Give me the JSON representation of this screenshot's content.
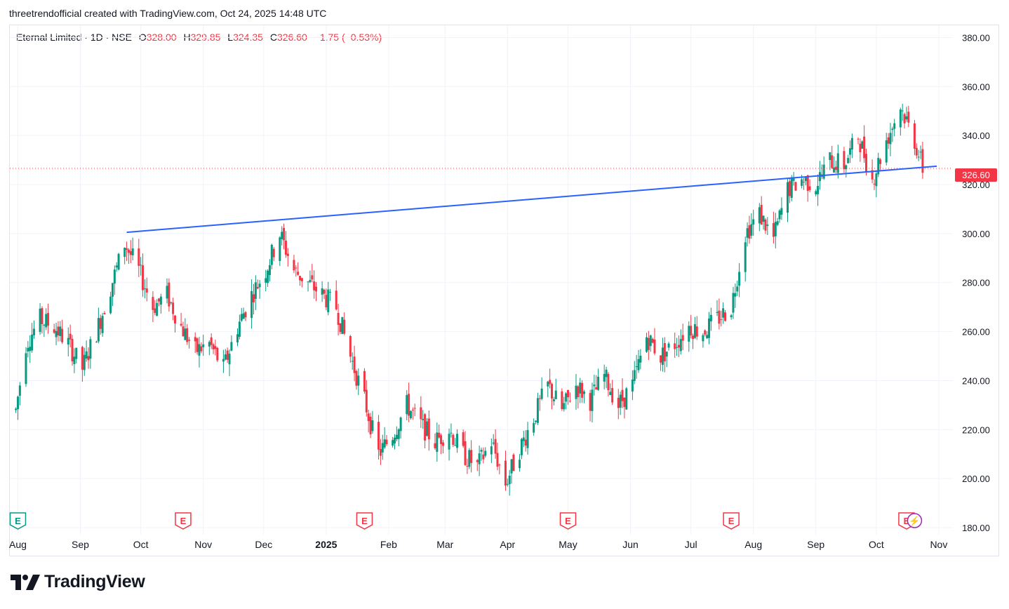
{
  "caption": "threetrendofficial created with TradingView.com, Oct 24, 2025 14:48 UTC",
  "legend": {
    "symbol": "Eternal Limited · 1D · NSE",
    "o_label": "O",
    "o_value": "328.00",
    "h_label": "H",
    "h_value": "329.85",
    "l_label": "L",
    "l_value": "324.35",
    "c_label": "C",
    "c_value": "326.60",
    "change": "−1.75 (−0.53%)"
  },
  "brand": "TradingView",
  "last_price_label": "326.60",
  "colors": {
    "up": "#089981",
    "down": "#f23645",
    "trendline": "#2962ff",
    "event_up": "#089981",
    "event_down": "#f23645",
    "dividend": "#9c27b0"
  },
  "chart_data": {
    "type": "candlestick",
    "ylim": [
      180,
      385
    ],
    "y_ticks": [
      "380.00",
      "360.00",
      "340.00",
      "320.00",
      "300.00",
      "280.00",
      "260.00",
      "240.00",
      "220.00",
      "200.00",
      "180.00"
    ],
    "x_ticks": [
      "Aug",
      "Sep",
      "Oct",
      "Nov",
      "Dec",
      "2025",
      "Feb",
      "Mar",
      "Apr",
      "May",
      "Jun",
      "Jul",
      "Aug",
      "Sep",
      "Oct",
      "Nov"
    ],
    "last_price": 326.6,
    "trendline": {
      "from": [
        "2024-09-24",
        300.5
      ],
      "to": [
        "2025-10-31",
        327.5
      ]
    },
    "closes": [
      [
        "2024-07-31",
        228
      ],
      [
        "2024-08-05",
        255
      ],
      [
        "2024-08-12",
        265
      ],
      [
        "2024-08-19",
        262
      ],
      [
        "2024-08-26",
        255
      ],
      [
        "2024-09-02",
        245
      ],
      [
        "2024-09-09",
        260
      ],
      [
        "2024-09-16",
        278
      ],
      [
        "2024-09-23",
        296
      ],
      [
        "2024-09-30",
        285
      ],
      [
        "2024-10-07",
        270
      ],
      [
        "2024-10-14",
        275
      ],
      [
        "2024-10-21",
        262
      ],
      [
        "2024-10-28",
        252
      ],
      [
        "2024-11-04",
        255
      ],
      [
        "2024-11-11",
        245
      ],
      [
        "2024-11-18",
        262
      ],
      [
        "2024-11-25",
        275
      ],
      [
        "2024-12-02",
        285
      ],
      [
        "2024-12-09",
        300
      ],
      [
        "2024-12-16",
        285
      ],
      [
        "2024-12-23",
        280
      ],
      [
        "2024-12-30",
        275
      ],
      [
        "2025-01-06",
        270
      ],
      [
        "2025-01-13",
        250
      ],
      [
        "2025-01-20",
        232
      ],
      [
        "2025-01-27",
        210
      ],
      [
        "2025-02-03",
        218
      ],
      [
        "2025-02-10",
        230
      ],
      [
        "2025-02-17",
        222
      ],
      [
        "2025-02-24",
        215
      ],
      [
        "2025-03-03",
        220
      ],
      [
        "2025-03-10",
        210
      ],
      [
        "2025-03-17",
        205
      ],
      [
        "2025-03-24",
        215
      ],
      [
        "2025-03-31",
        198
      ],
      [
        "2025-04-07",
        212
      ],
      [
        "2025-04-14",
        225
      ],
      [
        "2025-04-21",
        238
      ],
      [
        "2025-04-28",
        228
      ],
      [
        "2025-05-05",
        238
      ],
      [
        "2025-05-12",
        232
      ],
      [
        "2025-05-19",
        242
      ],
      [
        "2025-05-26",
        230
      ],
      [
        "2025-06-02",
        238
      ],
      [
        "2025-06-09",
        258
      ],
      [
        "2025-06-16",
        250
      ],
      [
        "2025-06-23",
        255
      ],
      [
        "2025-06-30",
        262
      ],
      [
        "2025-07-07",
        260
      ],
      [
        "2025-07-14",
        265
      ],
      [
        "2025-07-21",
        270
      ],
      [
        "2025-07-28",
        300
      ],
      [
        "2025-08-04",
        308
      ],
      [
        "2025-08-11",
        298
      ],
      [
        "2025-08-18",
        318
      ],
      [
        "2025-08-25",
        322
      ],
      [
        "2025-09-01",
        320
      ],
      [
        "2025-09-08",
        330
      ],
      [
        "2025-09-15",
        328
      ],
      [
        "2025-09-22",
        340
      ],
      [
        "2025-09-29",
        322
      ],
      [
        "2025-10-06",
        338
      ],
      [
        "2025-10-13",
        352
      ],
      [
        "2025-10-20",
        338
      ],
      [
        "2025-10-24",
        326.6
      ]
    ],
    "events": [
      {
        "date": "2024-08-01",
        "label": "E",
        "kind": "up"
      },
      {
        "date": "2024-10-22",
        "label": "E",
        "kind": "down"
      },
      {
        "date": "2025-01-20",
        "label": "E",
        "kind": "down"
      },
      {
        "date": "2025-05-01",
        "label": "E",
        "kind": "down"
      },
      {
        "date": "2025-07-21",
        "label": "E",
        "kind": "down"
      },
      {
        "date": "2025-10-16",
        "label": "E",
        "kind": "down"
      },
      {
        "date": "2025-10-20",
        "label": "⚡",
        "kind": "dividend"
      }
    ]
  }
}
